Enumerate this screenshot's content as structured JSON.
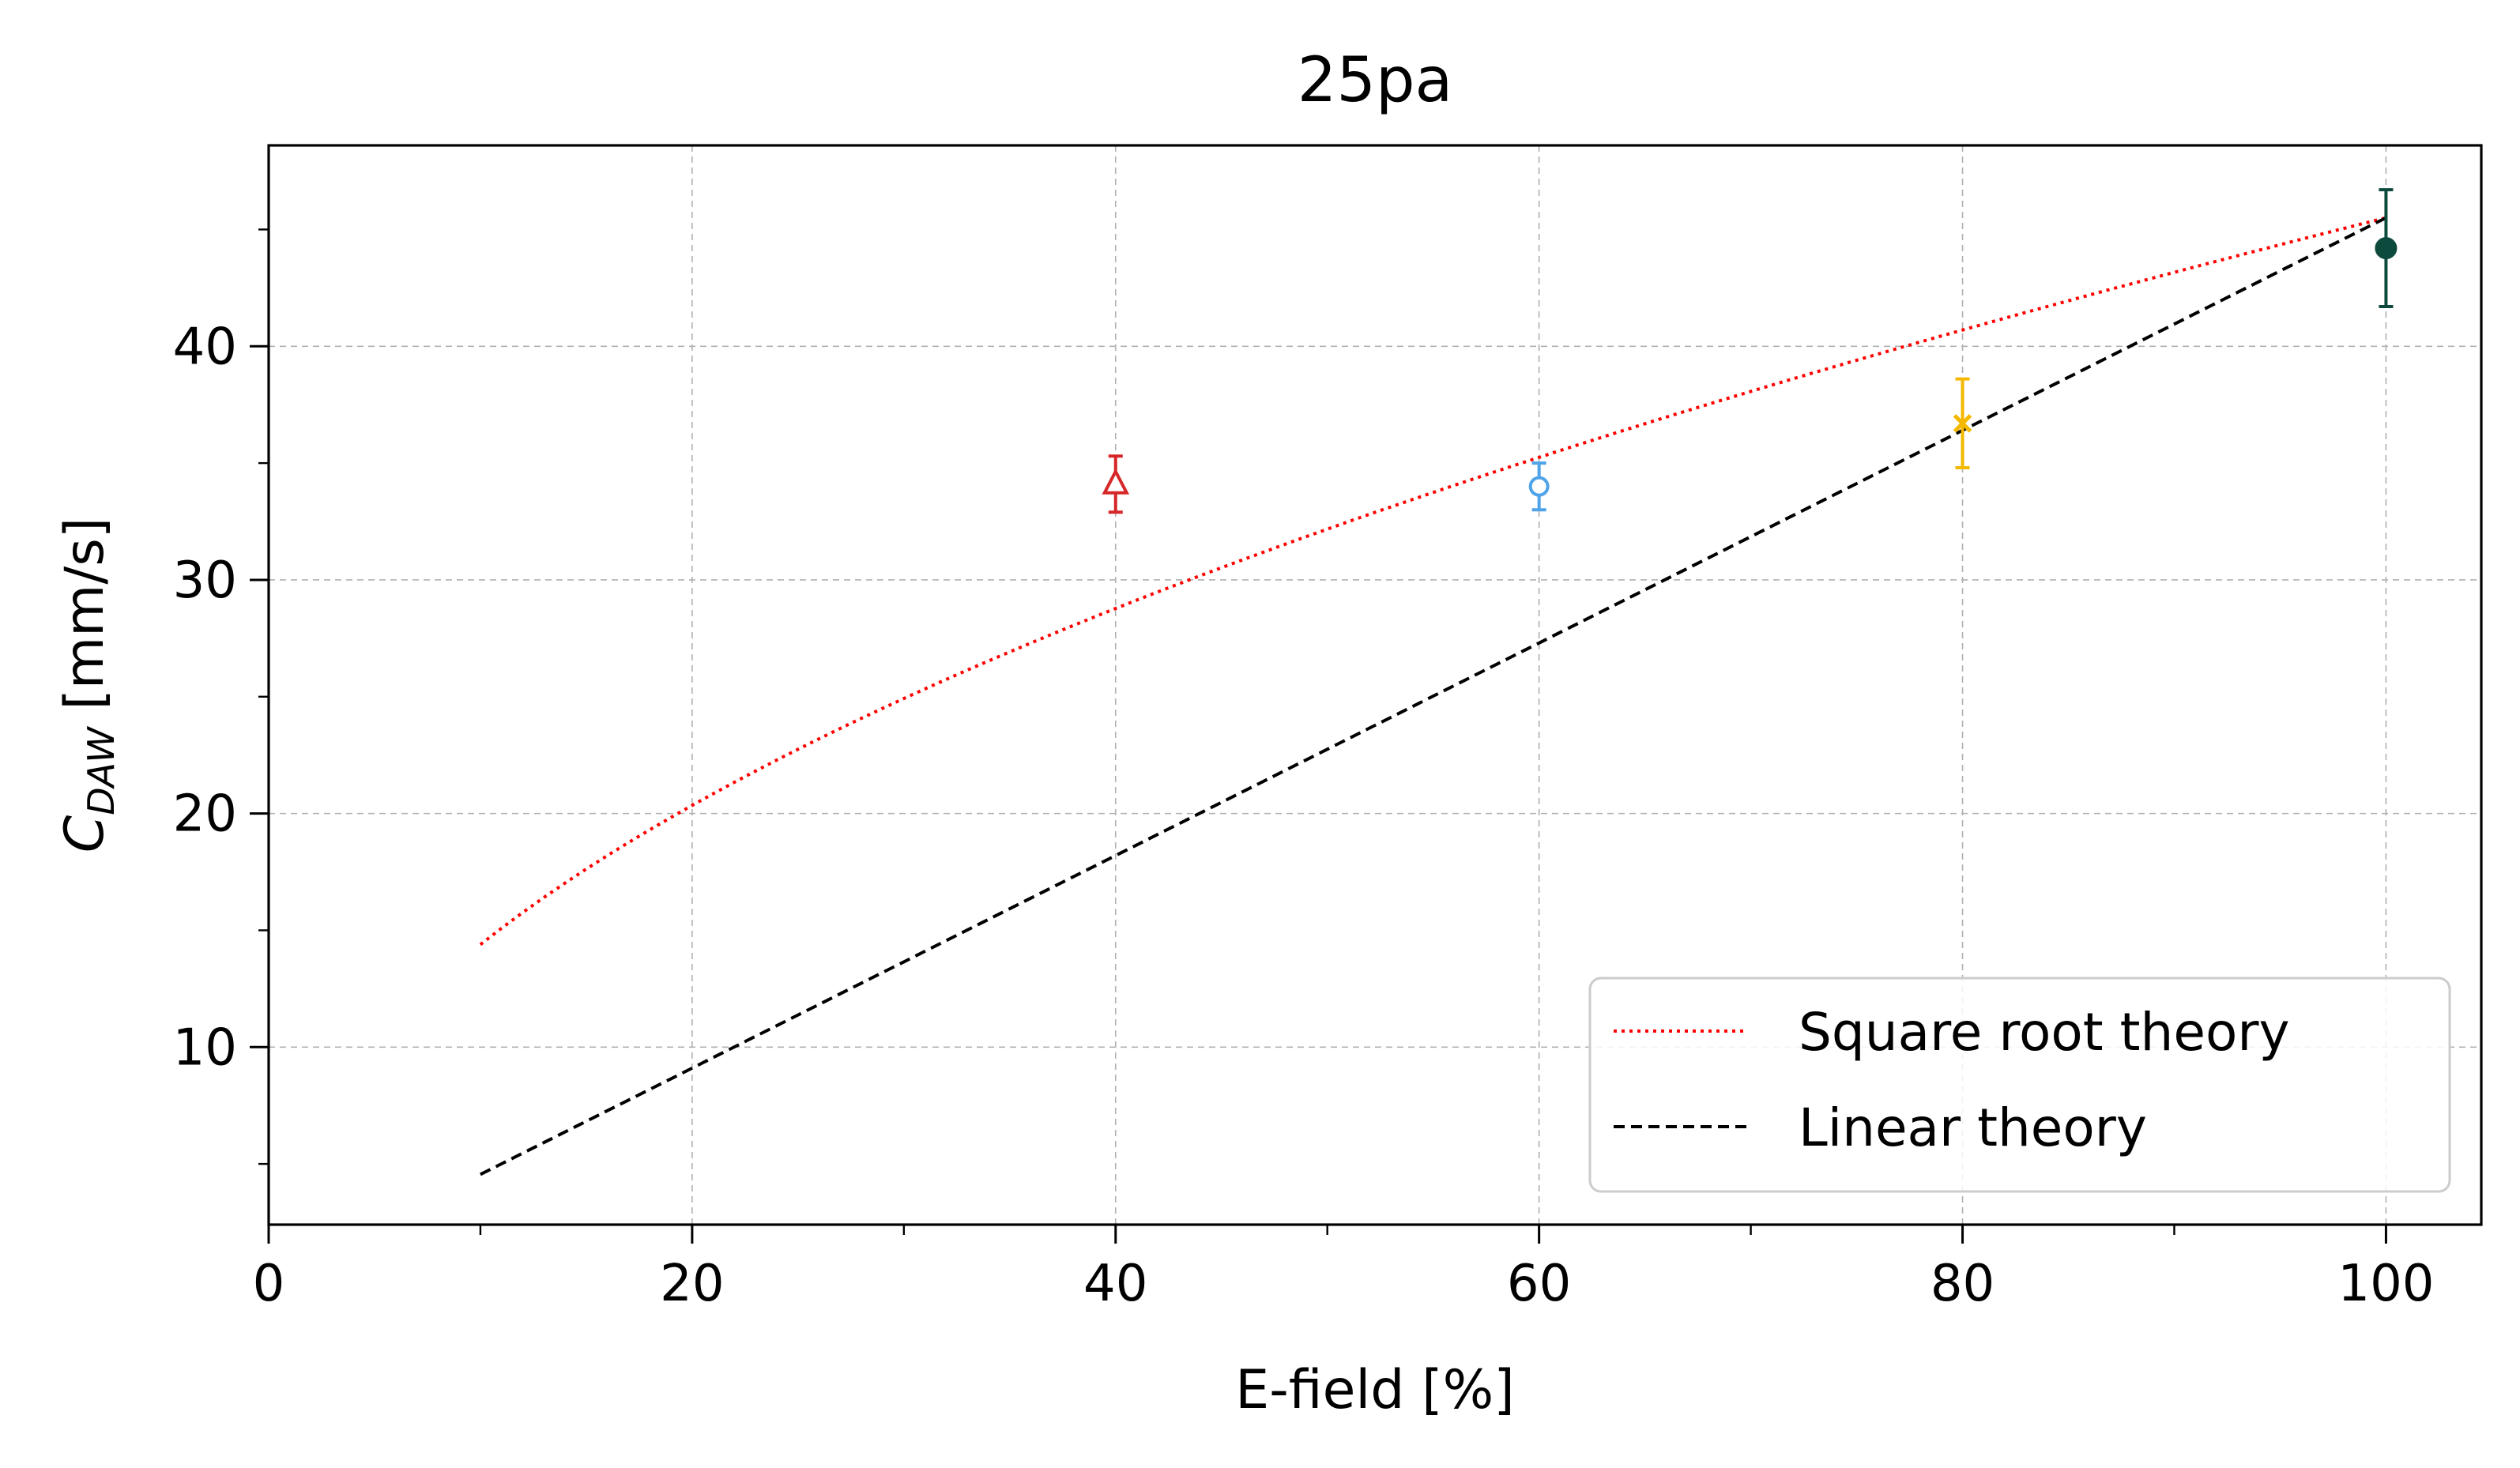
{
  "chart_data": {
    "type": "scatter",
    "title": "25pa",
    "xlabel": "E-field [%]",
    "ylabel": {
      "main": "C",
      "sub": "DAW",
      "unit": " [mm/s]"
    },
    "xlim": [
      0,
      104.5
    ],
    "ylim": [
      2.4,
      48.6
    ],
    "x_ticks": [
      0,
      20,
      40,
      60,
      80,
      100
    ],
    "x_minor_ticks": [
      10,
      30,
      50,
      70,
      90
    ],
    "y_ticks": [
      10,
      20,
      30,
      40
    ],
    "y_minor_ticks": [
      5,
      15,
      25,
      35,
      45
    ],
    "grid": true,
    "legend_position": "lower-right",
    "points": [
      {
        "x": 40,
        "y": 34.1,
        "yerr": 1.2,
        "marker": "triangle-open",
        "color": "#d62728"
      },
      {
        "x": 60,
        "y": 34.0,
        "yerr": 1.0,
        "marker": "circle-open",
        "color": "#4fa3e8"
      },
      {
        "x": 80,
        "y": 36.7,
        "yerr": 1.9,
        "marker": "x",
        "color": "#f5b800"
      },
      {
        "x": 100,
        "y": 44.2,
        "yerr": 2.5,
        "marker": "circle-filled",
        "color": "#0d4a3e"
      }
    ],
    "series": [
      {
        "name": "Square root theory",
        "style": "dotted",
        "color": "#ff0000",
        "curve": "sqrt",
        "x_range": [
          10,
          100
        ],
        "y_at_100": 45.5
      },
      {
        "name": "Linear theory",
        "style": "dashed",
        "color": "#000000",
        "curve": "linear",
        "x_range": [
          10,
          100
        ],
        "y_at_100": 45.5
      }
    ]
  }
}
